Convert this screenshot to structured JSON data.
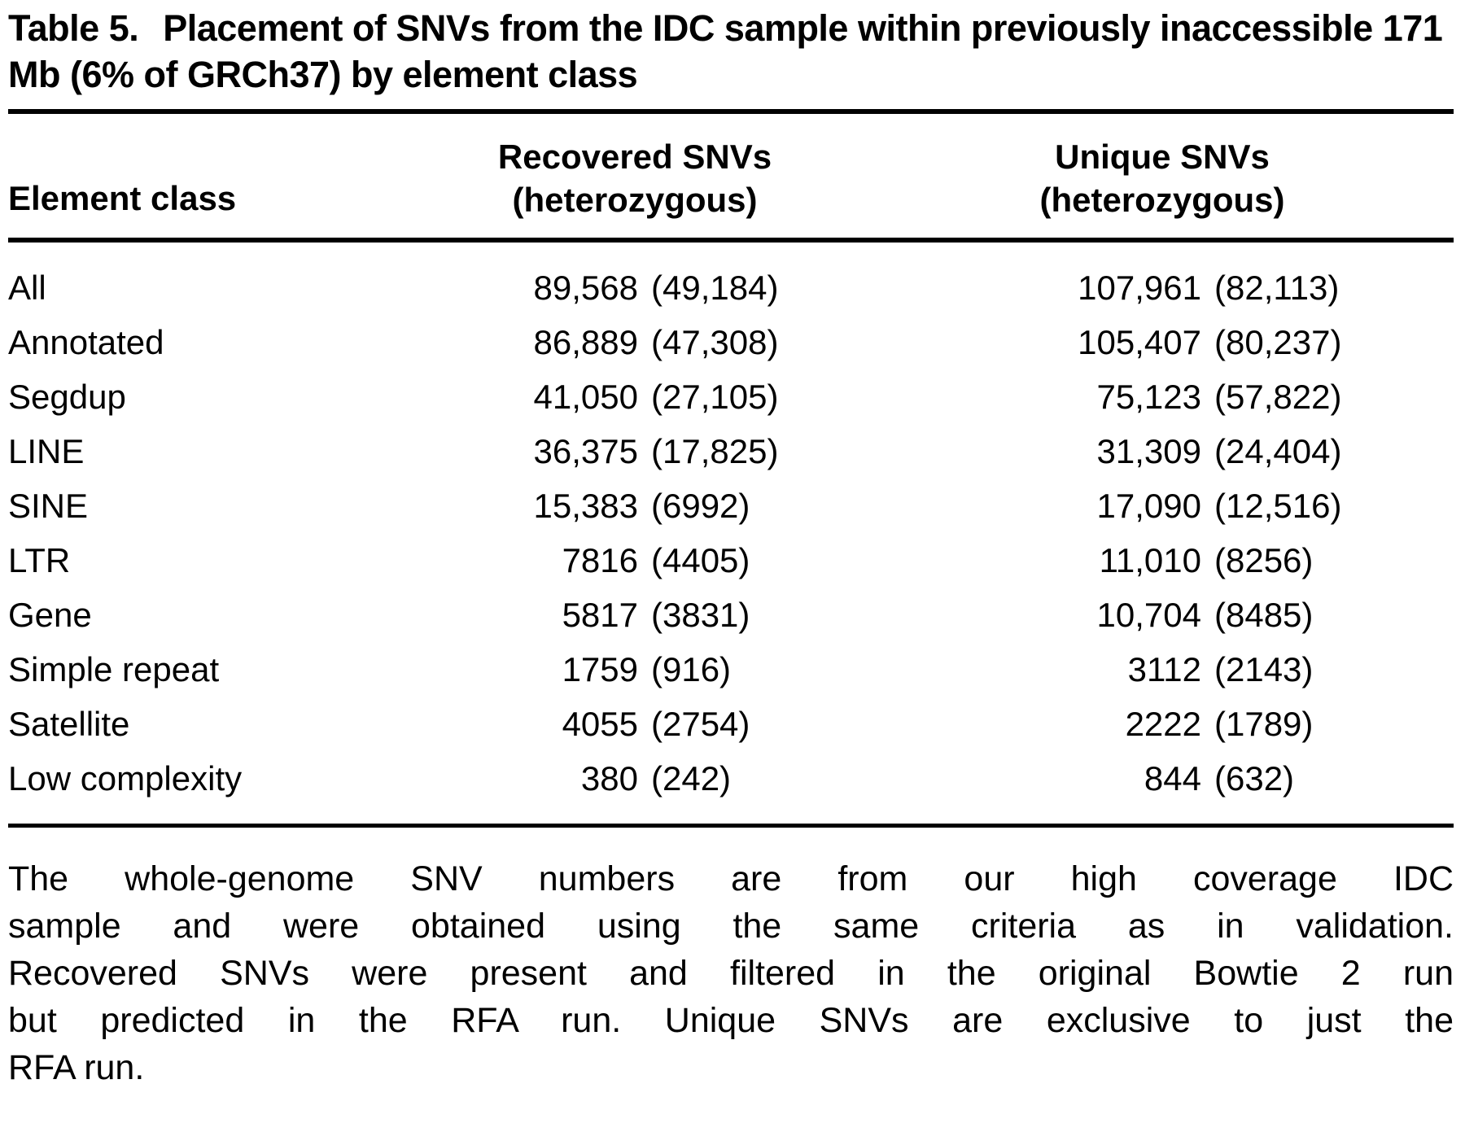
{
  "title": {
    "prefix": "Table 5.",
    "text": "Placement of SNVs from the IDC sample within previously inaccessible 171 Mb (6% of GRCh37) by element class"
  },
  "table": {
    "header": {
      "element_class": "Element class",
      "recovered_line1": "Recovered SNVs",
      "recovered_line2": "(heterozygous)",
      "unique_line1": "Unique SNVs",
      "unique_line2": "(heterozygous)"
    },
    "rows": [
      {
        "element": "All",
        "recovered": "89,568",
        "recovered_het": "(49,184)",
        "unique": "107,961",
        "unique_het": "(82,113)"
      },
      {
        "element": "Annotated",
        "recovered": "86,889",
        "recovered_het": "(47,308)",
        "unique": "105,407",
        "unique_het": "(80,237)"
      },
      {
        "element": "Segdup",
        "recovered": "41,050",
        "recovered_het": "(27,105)",
        "unique": "75,123",
        "unique_het": "(57,822)"
      },
      {
        "element": "LINE",
        "recovered": "36,375",
        "recovered_het": "(17,825)",
        "unique": "31,309",
        "unique_het": "(24,404)"
      },
      {
        "element": "SINE",
        "recovered": "15,383",
        "recovered_het": "(6992)",
        "unique": "17,090",
        "unique_het": "(12,516)"
      },
      {
        "element": "LTR",
        "recovered": "7816",
        "recovered_het": "(4405)",
        "unique": "11,010",
        "unique_het": "(8256)"
      },
      {
        "element": "Gene",
        "recovered": "5817",
        "recovered_het": "(3831)",
        "unique": "10,704",
        "unique_het": "(8485)"
      },
      {
        "element": "Simple repeat",
        "recovered": "1759",
        "recovered_het": "(916)",
        "unique": "3112",
        "unique_het": "(2143)"
      },
      {
        "element": "Satellite",
        "recovered": "4055",
        "recovered_het": "(2754)",
        "unique": "2222",
        "unique_het": "(1789)"
      },
      {
        "element": "Low complexity",
        "recovered": "380",
        "recovered_het": "(242)",
        "unique": "844",
        "unique_het": "(632)"
      }
    ]
  },
  "footnote": {
    "lines": [
      "The whole-genome SNV numbers are from our high coverage IDC",
      "sample and were obtained using the same criteria as in validation.",
      "Recovered SNVs were present and filtered in the original Bowtie 2 run",
      "but predicted in the RFA run. Unique SNVs are exclusive to just the",
      "RFA run."
    ]
  }
}
